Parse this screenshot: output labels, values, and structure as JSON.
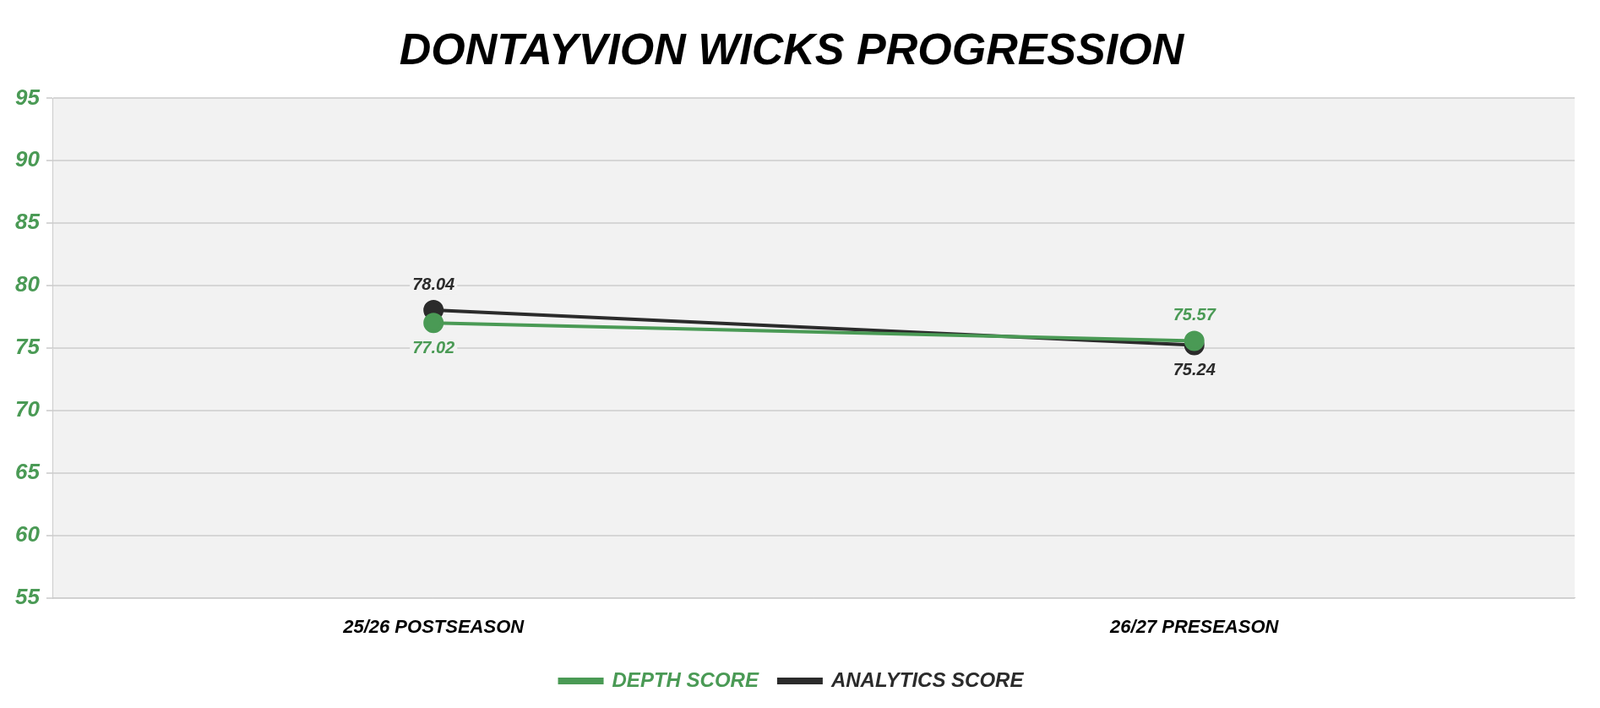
{
  "chart_data": {
    "type": "line",
    "title": "DONTAYVION WICKS PROGRESSION",
    "categories": [
      "25/26 POSTSEASON",
      "26/27 PRESEASON"
    ],
    "series": [
      {
        "name": "DEPTH SCORE",
        "color": "#4a9a55",
        "values": [
          77.02,
          75.57
        ],
        "marker": "circle",
        "line_style": "solid"
      },
      {
        "name": "ANALYTICS SCORE",
        "color": "#2b2b2b",
        "values": [
          78.04,
          75.24
        ],
        "marker": "circle",
        "line_style": "solid"
      }
    ],
    "ylim": [
      55,
      95
    ],
    "yticks": [
      55,
      60,
      65,
      70,
      75,
      80,
      85,
      90,
      95
    ],
    "grid": true,
    "legend": "bottom",
    "data_labels": true
  }
}
